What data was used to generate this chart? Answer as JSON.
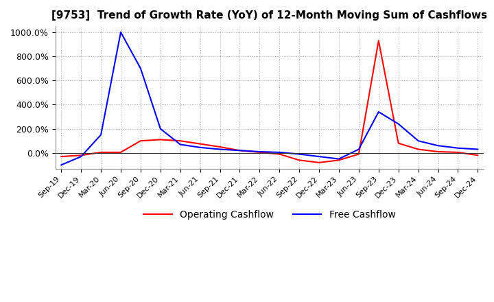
{
  "title": "[9753]  Trend of Growth Rate (YoY) of 12-Month Moving Sum of Cashflows",
  "ylim": [
    -130,
    1050
  ],
  "yticks": [
    0,
    200,
    400,
    600,
    800,
    1000
  ],
  "ytick_labels": [
    "0.0%",
    "200.0%",
    "400.0%",
    "600.0%",
    "800.0%",
    "1000.0%"
  ],
  "background_color": "#ffffff",
  "grid_color": "#aaaaaa",
  "legend": [
    "Operating Cashflow",
    "Free Cashflow"
  ],
  "line_colors": [
    "#ff0000",
    "#0000ff"
  ],
  "dates": [
    "Sep-19",
    "Dec-19",
    "Mar-20",
    "Jun-20",
    "Sep-20",
    "Dec-20",
    "Mar-21",
    "Jun-21",
    "Sep-21",
    "Dec-21",
    "Mar-22",
    "Jun-22",
    "Sep-22",
    "Dec-22",
    "Mar-23",
    "Jun-23",
    "Sep-23",
    "Dec-23",
    "Mar-24",
    "Jun-24",
    "Sep-24",
    "Dec-24"
  ],
  "operating_cashflow": [
    -30,
    -20,
    5,
    5,
    100,
    110,
    100,
    75,
    50,
    20,
    5,
    -10,
    -60,
    -80,
    -60,
    -10,
    930,
    80,
    30,
    10,
    5,
    -20
  ],
  "free_cashflow": [
    -100,
    -30,
    150,
    1000,
    700,
    200,
    70,
    45,
    30,
    20,
    10,
    5,
    -10,
    -30,
    -50,
    30,
    340,
    240,
    100,
    60,
    40,
    30
  ]
}
